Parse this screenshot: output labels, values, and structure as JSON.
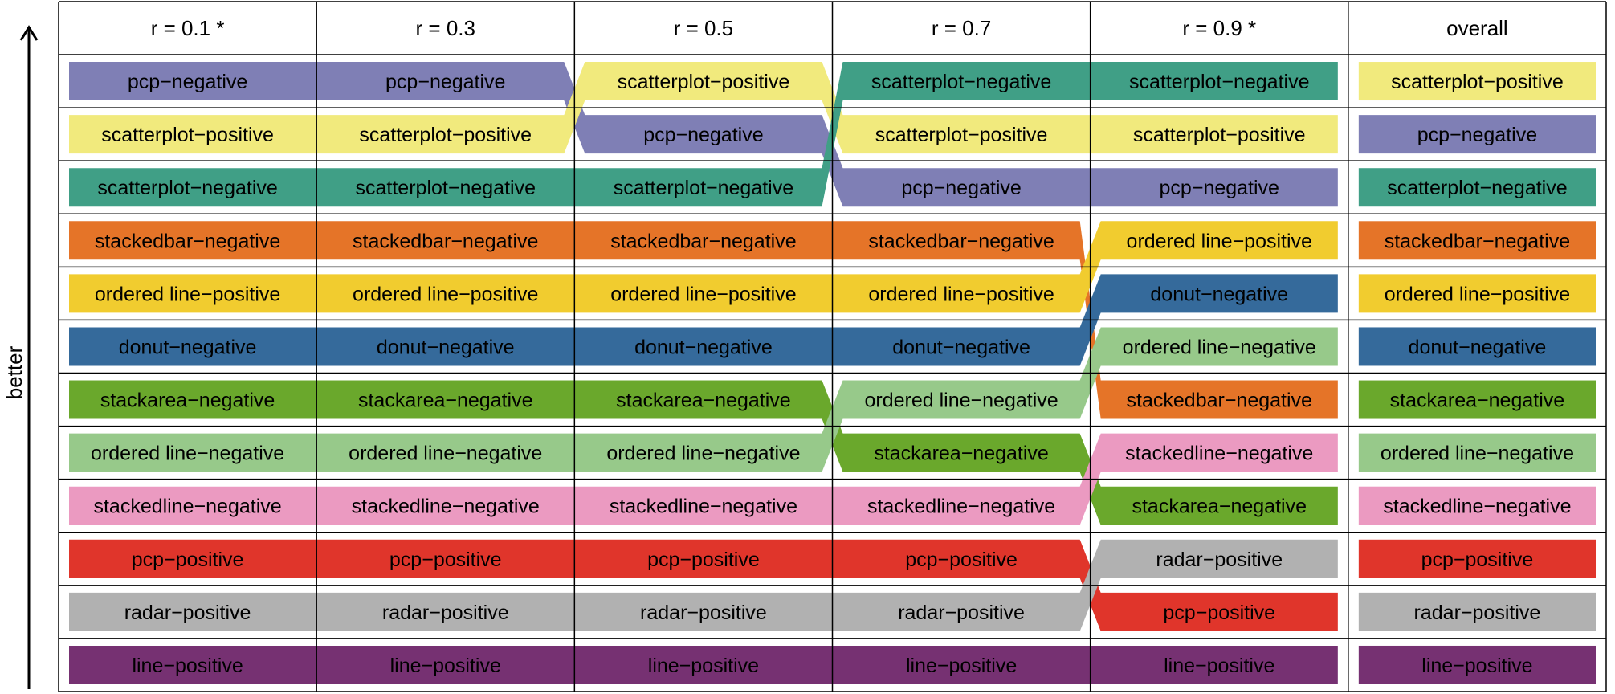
{
  "chart_data": {
    "type": "bump",
    "ylabel": "better",
    "columns": [
      "r = 0.1 *",
      "r = 0.3",
      "r = 0.5",
      "r = 0.7",
      "r = 0.9 *",
      "overall"
    ],
    "series": [
      {
        "name": "pcp−negative",
        "color": "#7f7fb5",
        "ranks": [
          1,
          1,
          2,
          3,
          3,
          2
        ]
      },
      {
        "name": "scatterplot−positive",
        "color": "#f1ea7d",
        "ranks": [
          2,
          2,
          1,
          2,
          2,
          1
        ]
      },
      {
        "name": "scatterplot−negative",
        "color": "#409f86",
        "ranks": [
          3,
          3,
          3,
          1,
          1,
          3
        ]
      },
      {
        "name": "stackedbar−negative",
        "color": "#e57428",
        "ranks": [
          4,
          4,
          4,
          4,
          7,
          4
        ]
      },
      {
        "name": "ordered line−positive",
        "color": "#f1cc2f",
        "ranks": [
          5,
          5,
          5,
          5,
          4,
          5
        ]
      },
      {
        "name": "donut−negative",
        "color": "#356a9b",
        "ranks": [
          6,
          6,
          6,
          6,
          5,
          6
        ]
      },
      {
        "name": "stackarea−negative",
        "color": "#6aa82c",
        "ranks": [
          7,
          7,
          7,
          8,
          9,
          7
        ]
      },
      {
        "name": "ordered line−negative",
        "color": "#97c98a",
        "ranks": [
          8,
          8,
          8,
          7,
          6,
          8
        ]
      },
      {
        "name": "stackedline−negative",
        "color": "#eb9ac1",
        "ranks": [
          9,
          9,
          9,
          9,
          8,
          9
        ]
      },
      {
        "name": "pcp−positive",
        "color": "#e0352b",
        "ranks": [
          10,
          10,
          10,
          10,
          11,
          10
        ]
      },
      {
        "name": "radar−positive",
        "color": "#b1b1b1",
        "ranks": [
          11,
          11,
          11,
          11,
          10,
          11
        ]
      },
      {
        "name": "line−positive",
        "color": "#763172",
        "ranks": [
          12,
          12,
          12,
          12,
          12,
          12
        ]
      }
    ]
  }
}
